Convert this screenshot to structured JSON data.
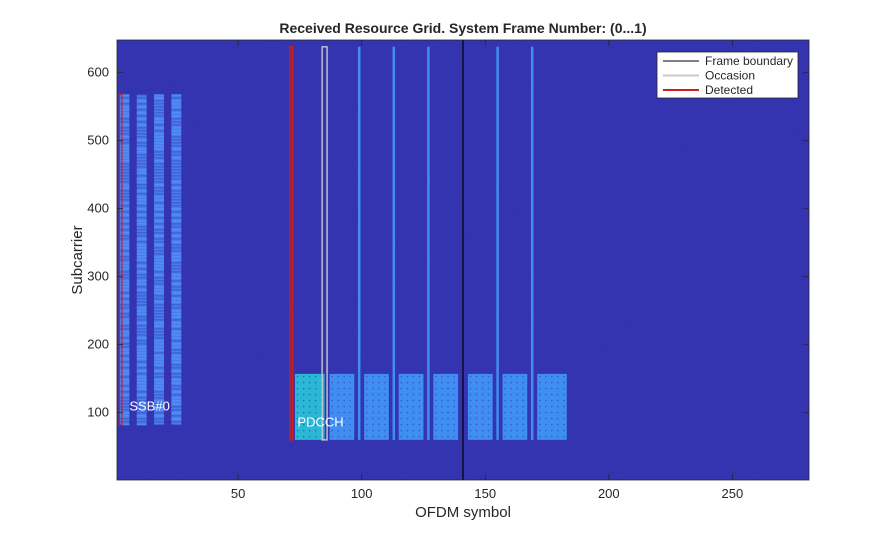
{
  "chart_data": {
    "type": "heatmap",
    "title": "Received Resource Grid. System Frame Number: (0...1)",
    "xlabel": "OFDM symbol",
    "ylabel": "Subcarrier",
    "xlim": [
      1,
      281
    ],
    "ylim": [
      1,
      648
    ],
    "xticks": [
      50,
      100,
      150,
      200,
      250
    ],
    "yticks": [
      100,
      200,
      300,
      400,
      500,
      600
    ],
    "grid": false,
    "colors": {
      "background": "#3434b0",
      "noise_dark": "#2d2da6",
      "noise_light": "#3b3bbb",
      "ssb": "#4a7cf0",
      "ssb_speckle": "#5fb0f0",
      "pdcch_detected": "#2ab8d4",
      "pdsch": "#3f8ef2",
      "occasion_line": "#3f8ef2",
      "frame_boundary": "#000000",
      "occasion": "#c8c8c8",
      "detected": "#cc1f1f"
    },
    "legend": {
      "position": "top-right",
      "entries": [
        {
          "label": "Frame boundary",
          "color": "#000000"
        },
        {
          "label": "Occasion",
          "color": "#c8c8c8"
        },
        {
          "label": "Detected",
          "color": "#cc1f1f"
        }
      ]
    },
    "ssb_blocks": [
      {
        "x_start": 2,
        "x_end": 6,
        "y_start": 82,
        "y_end": 568
      },
      {
        "x_start": 9,
        "x_end": 13,
        "y_start": 82,
        "y_end": 568
      },
      {
        "x_start": 16,
        "x_end": 20,
        "y_start": 82,
        "y_end": 568
      },
      {
        "x_start": 23,
        "x_end": 27,
        "y_start": 82,
        "y_end": 568
      }
    ],
    "pdcch_blocks": [
      {
        "x_start": 73,
        "x_end": 85,
        "y_start": 60,
        "y_end": 157,
        "detected": true
      },
      {
        "x_start": 87,
        "x_end": 97,
        "y_start": 60,
        "y_end": 157,
        "detected": false
      },
      {
        "x_start": 101,
        "x_end": 111,
        "y_start": 60,
        "y_end": 157,
        "detected": false
      },
      {
        "x_start": 115,
        "x_end": 125,
        "y_start": 60,
        "y_end": 157,
        "detected": false
      },
      {
        "x_start": 129,
        "x_end": 139,
        "y_start": 60,
        "y_end": 157,
        "detected": false
      },
      {
        "x_start": 143,
        "x_end": 153,
        "y_start": 60,
        "y_end": 157,
        "detected": false
      },
      {
        "x_start": 157,
        "x_end": 167,
        "y_start": 60,
        "y_end": 157,
        "detected": false
      },
      {
        "x_start": 171,
        "x_end": 183,
        "y_start": 60,
        "y_end": 157,
        "detected": false
      }
    ],
    "coreset_lines": {
      "x": [
        99,
        113,
        127,
        155,
        169
      ],
      "y_start": 60,
      "y_end": 638
    },
    "frame_boundary": {
      "x": 141,
      "y_start": 1,
      "y_end": 648
    },
    "occasion": {
      "x_start": 84,
      "x_end": 86,
      "y_start": 60,
      "y_end": 638
    },
    "detected_region": {
      "x_start": 71,
      "x_end": 72,
      "y_start": 60,
      "y_end": 638
    },
    "ssb_detected_outline": {
      "x_start": 2,
      "x_end": 3,
      "y_start": 82,
      "y_end": 568
    },
    "annotations": [
      {
        "text": "SSB#0",
        "x": 6,
        "y": 103
      },
      {
        "text": "PDCCH",
        "x": 74,
        "y": 80
      }
    ]
  }
}
